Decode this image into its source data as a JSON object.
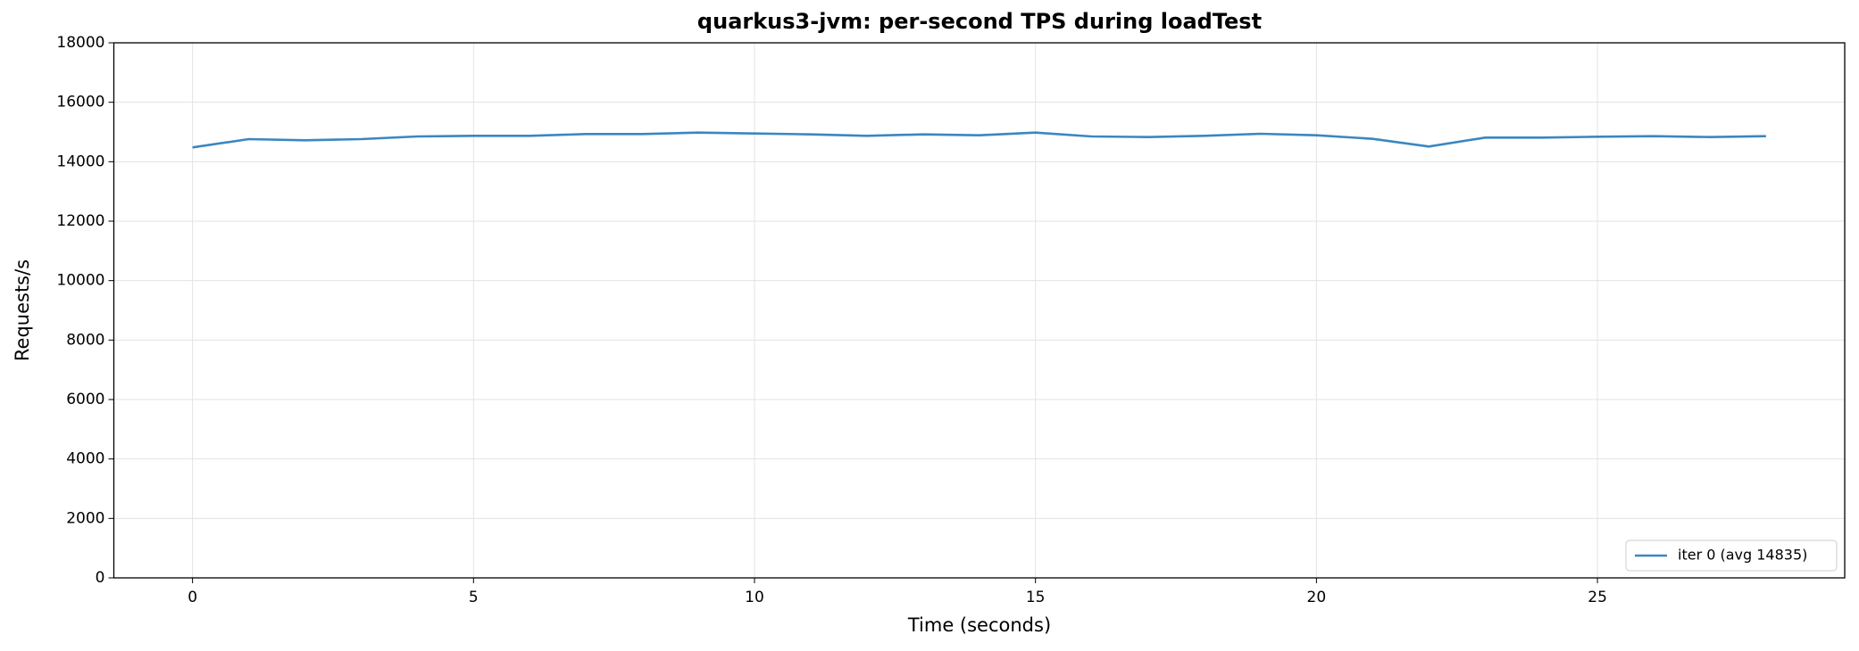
{
  "chart_data": {
    "type": "line",
    "title": "quarkus3-jvm: per-second TPS during loadTest",
    "x_label": "Time (seconds)",
    "y_label": "Requests/s",
    "x": [
      0,
      1,
      2,
      3,
      4,
      5,
      6,
      7,
      8,
      9,
      10,
      11,
      12,
      13,
      14,
      15,
      16,
      17,
      18,
      19,
      20,
      21,
      22,
      23,
      24,
      25,
      26,
      27,
      28
    ],
    "series": [
      {
        "name": "iter 0 (avg 14835)",
        "color": "#3a87c0",
        "values": [
          14480,
          14760,
          14720,
          14760,
          14850,
          14870,
          14870,
          14930,
          14930,
          14980,
          14950,
          14920,
          14870,
          14920,
          14890,
          14980,
          14850,
          14830,
          14870,
          14940,
          14890,
          14770,
          14510,
          14810,
          14810,
          14840,
          14860,
          14830,
          14860
        ]
      }
    ],
    "xlim": [
      -1.4,
      29.4
    ],
    "xticks": [
      0,
      5,
      10,
      15,
      20,
      25
    ],
    "ylim": [
      0,
      18000
    ],
    "yticks": [
      0,
      2000,
      4000,
      6000,
      8000,
      10000,
      12000,
      14000,
      16000,
      18000
    ],
    "grid": true,
    "legend": "lower right"
  }
}
